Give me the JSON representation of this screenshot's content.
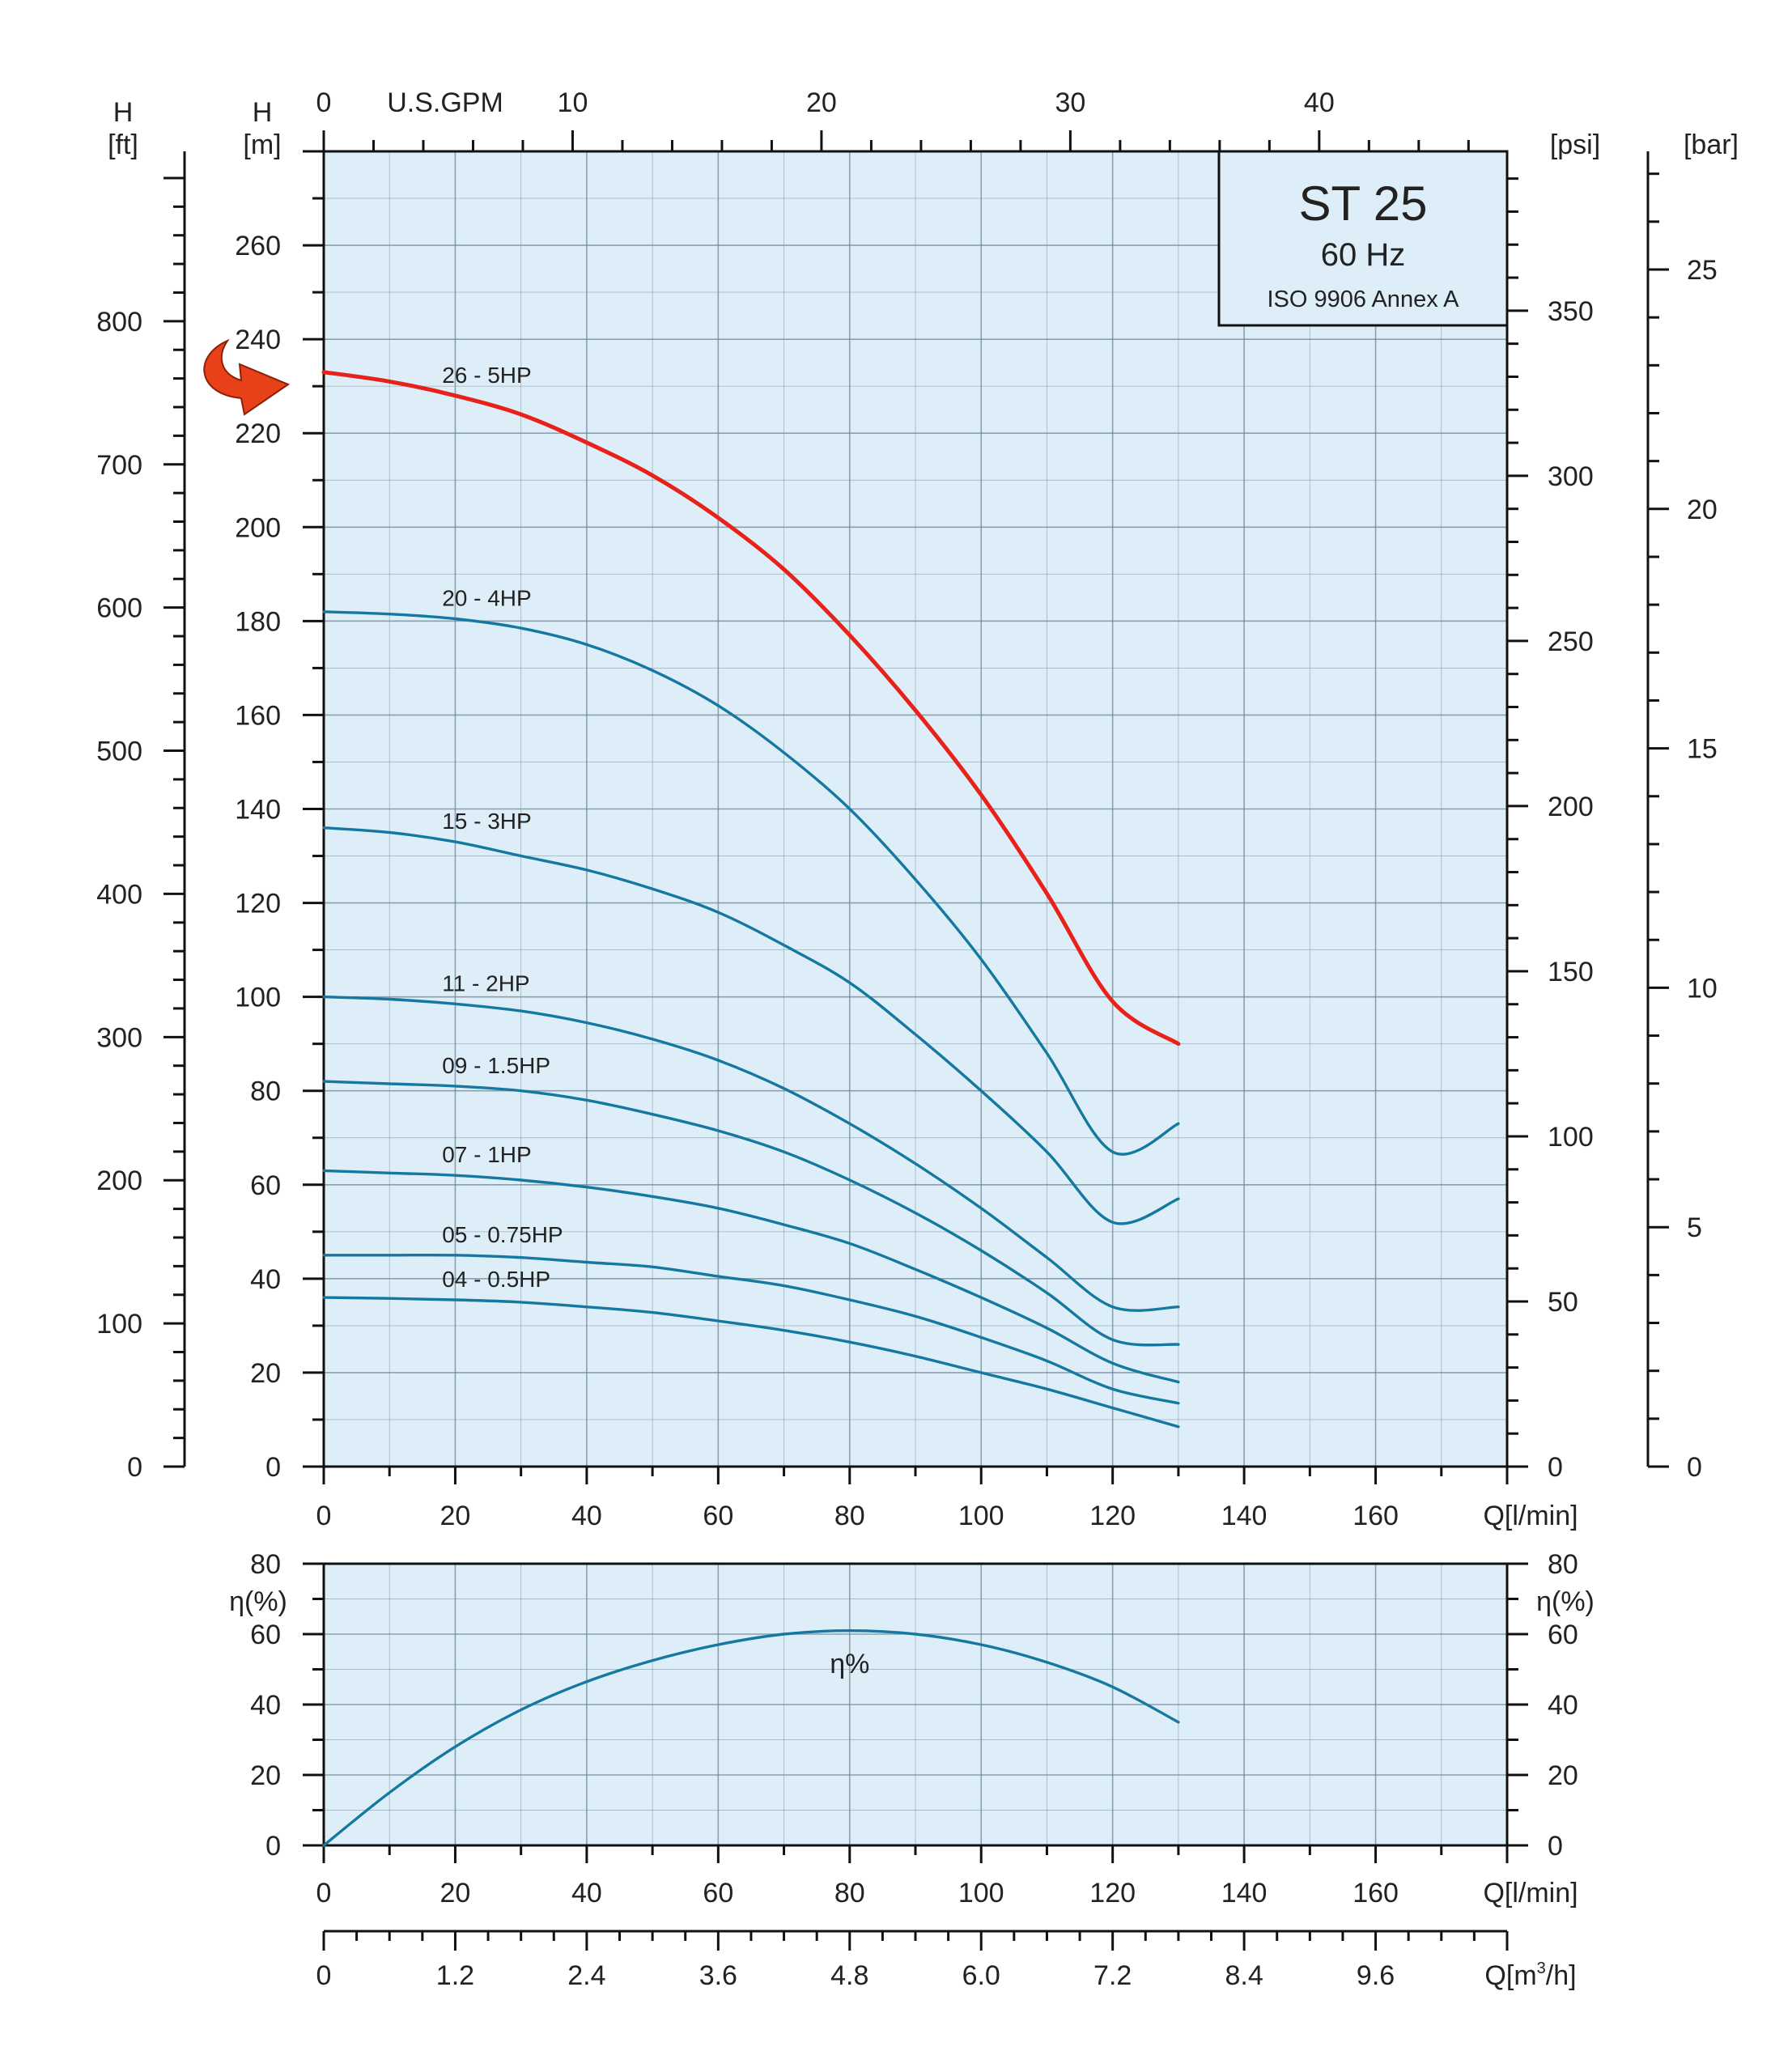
{
  "title_box": {
    "model": "ST 25",
    "frequency": "60 Hz",
    "standard": "ISO 9906 Annex A"
  },
  "colors": {
    "panel": "#deeef8",
    "curve": "#1478a0",
    "highlight": "#e8211a",
    "arrow": "#e8411a",
    "grid": "#6f8595",
    "axis": "#111111"
  },
  "chart_data": [
    {
      "type": "line",
      "name": "head-curves",
      "xlabel": "Q[l/min]",
      "ylabel": "H [m]",
      "xlim": [
        0,
        180
      ],
      "ylim": [
        0,
        280
      ],
      "x_ticks": [
        0,
        20,
        40,
        60,
        80,
        100,
        120,
        140,
        160
      ],
      "y_ticks": [
        0,
        20,
        40,
        60,
        80,
        100,
        120,
        140,
        160,
        180,
        200,
        220,
        240,
        260
      ],
      "grid": true,
      "highlighted_series": "26 - 5HP",
      "secondary_axes": {
        "top": {
          "label": "U.S.GPM",
          "ticks": [
            0,
            10,
            20,
            30,
            40
          ],
          "factor_per_lmin": 0.26417
        },
        "left_ft": {
          "label": "H [ft]",
          "ticks": [
            0,
            100,
            200,
            300,
            400,
            500,
            600,
            700,
            800
          ],
          "factor_per_m": 3.28084
        },
        "right_psi": {
          "label": "[psi]",
          "ticks": [
            0,
            50,
            100,
            150,
            200,
            250,
            300,
            350
          ],
          "factor_per_m": 1.4223
        },
        "right_bar": {
          "label": "[bar]",
          "ticks": [
            0,
            5,
            10,
            15,
            20,
            25
          ],
          "factor_per_m": 0.0981
        }
      },
      "x": [
        0,
        10,
        20,
        30,
        40,
        50,
        60,
        70,
        80,
        90,
        100,
        110,
        120,
        130
      ],
      "series": [
        {
          "name": "26 - 5HP",
          "values": [
            233,
            231,
            228,
            224,
            218,
            211,
            202,
            191,
            177,
            161,
            143,
            122,
            99,
            90
          ]
        },
        {
          "name": "20 - 4HP",
          "values": [
            182,
            181.5,
            180.5,
            178.5,
            175,
            169.5,
            162,
            152,
            140,
            125,
            108,
            88,
            67,
            73
          ]
        },
        {
          "name": "15 - 3HP",
          "values": [
            136,
            135,
            133,
            130,
            127,
            123,
            118,
            111,
            103,
            92,
            80,
            67,
            52,
            57
          ]
        },
        {
          "name": "11 - 2HP",
          "values": [
            100,
            99.5,
            98.5,
            97,
            94.5,
            91,
            86.5,
            80.5,
            73,
            64.5,
            55,
            44.5,
            34,
            34
          ]
        },
        {
          "name": "09 - 1.5HP",
          "values": [
            82,
            81.5,
            81,
            80,
            78,
            75,
            71.5,
            67,
            61,
            54,
            46,
            37,
            27,
            26
          ]
        },
        {
          "name": "07 - 1HP",
          "values": [
            63,
            62.5,
            62,
            61,
            59.5,
            57.5,
            55,
            51.5,
            47.5,
            42,
            36,
            29.5,
            22,
            18
          ]
        },
        {
          "name": "05 - 0.75HP",
          "values": [
            45,
            45,
            45,
            44.5,
            43.5,
            42.5,
            40.5,
            38.5,
            35.5,
            32,
            27.5,
            22.5,
            16.5,
            13.5
          ]
        },
        {
          "name": "04 - 0.5HP",
          "values": [
            36,
            35.8,
            35.5,
            35,
            34,
            32.8,
            31,
            29,
            26.5,
            23.5,
            20,
            16.5,
            12.5,
            8.5
          ]
        }
      ]
    },
    {
      "type": "line",
      "name": "efficiency-curve",
      "xlabel": "Q[l/min]",
      "ylabel": "η(%)",
      "xlim": [
        0,
        180
      ],
      "ylim": [
        0,
        80
      ],
      "x_ticks": [
        0,
        20,
        40,
        60,
        80,
        100,
        120,
        140,
        160
      ],
      "y_ticks": [
        0,
        20,
        40,
        60,
        80
      ],
      "grid": true,
      "secondary_axes": {
        "bottom_m3h": {
          "label": "Q[m³/h]",
          "ticks": [
            "0",
            "1.2",
            "2.4",
            "3.6",
            "4.8",
            "6.0",
            "7.2",
            "8.4",
            "9.6"
          ]
        }
      },
      "x": [
        0,
        10,
        20,
        30,
        40,
        50,
        60,
        70,
        80,
        90,
        100,
        110,
        120,
        130
      ],
      "series": [
        {
          "name": "η%",
          "values": [
            0,
            15,
            28,
            38.5,
            46.5,
            52.5,
            57,
            60,
            61,
            60,
            57,
            52,
            45,
            35
          ]
        }
      ]
    }
  ],
  "axis_labels": {
    "h_ft": [
      "H",
      "[ft]"
    ],
    "h_m": [
      "H",
      "[m]"
    ],
    "gpm": "U.S.GPM",
    "psi": "[psi]",
    "bar": "[bar]",
    "q_lmin": "Q[l/min]",
    "eta": "η(%)",
    "q_m3h_base": "Q[m",
    "q_m3h_exp": "3",
    "q_m3h_end": "/h]"
  }
}
